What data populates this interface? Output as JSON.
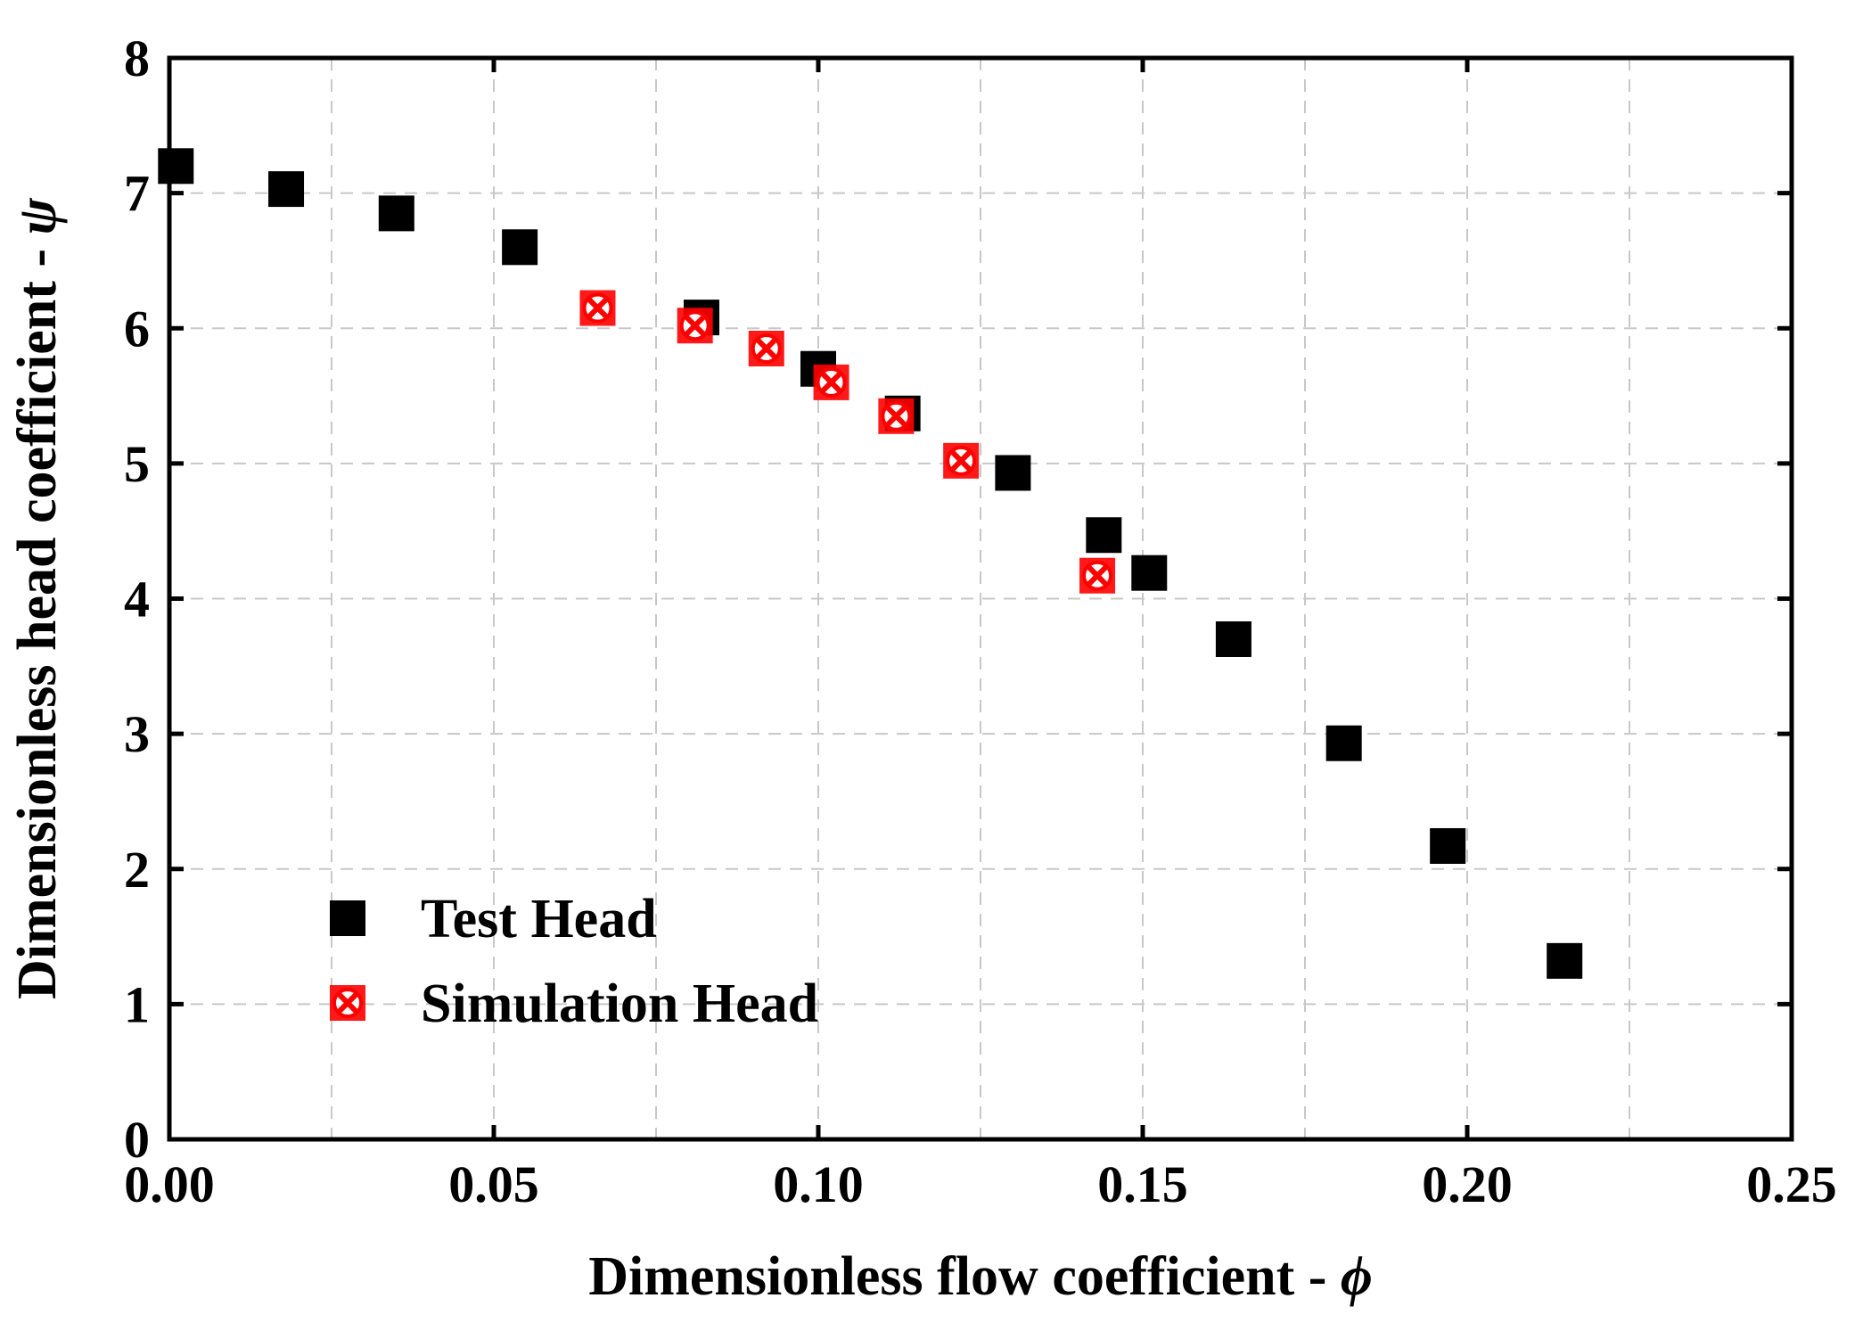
{
  "chart_data": {
    "type": "scatter",
    "title": "",
    "xlabel": "Dimensionless flow coefficient - ",
    "xlabel_symbol": "ϕ",
    "ylabel": "Dimensionless head coefficient - ",
    "ylabel_symbol": "ψ",
    "xlim": [
      0,
      0.25
    ],
    "ylim": [
      0,
      8
    ],
    "xticks": [
      0.0,
      0.05,
      0.1,
      0.15,
      0.2,
      0.25
    ],
    "xtick_labels": [
      "0.00",
      "0.05",
      "0.10",
      "0.15",
      "0.20",
      "0.25"
    ],
    "xgrid": [
      0.025,
      0.05,
      0.075,
      0.1,
      0.125,
      0.15,
      0.175,
      0.2,
      0.225
    ],
    "yticks": [
      0,
      1,
      2,
      3,
      4,
      5,
      6,
      7,
      8
    ],
    "ytick_labels": [
      "0",
      "1",
      "2",
      "3",
      "4",
      "5",
      "6",
      "7",
      "8"
    ],
    "grid": true,
    "legend_position": "lower-left",
    "series": [
      {
        "name": "Test Head",
        "marker": "filled-square",
        "color": "#000000",
        "x": [
          0.001,
          0.018,
          0.035,
          0.054,
          0.082,
          0.1,
          0.113,
          0.13,
          0.144,
          0.151,
          0.164,
          0.181,
          0.197,
          0.215
        ],
        "y": [
          7.2,
          7.03,
          6.85,
          6.6,
          6.08,
          5.7,
          5.37,
          4.93,
          4.47,
          4.19,
          3.7,
          2.93,
          2.17,
          1.32
        ]
      },
      {
        "name": "Simulation Head",
        "marker": "crossed-circle-square",
        "color": "#ff0000",
        "x": [
          0.066,
          0.081,
          0.092,
          0.102,
          0.112,
          0.122,
          0.143
        ],
        "y": [
          6.15,
          6.02,
          5.85,
          5.6,
          5.35,
          5.02,
          4.17
        ]
      }
    ]
  }
}
